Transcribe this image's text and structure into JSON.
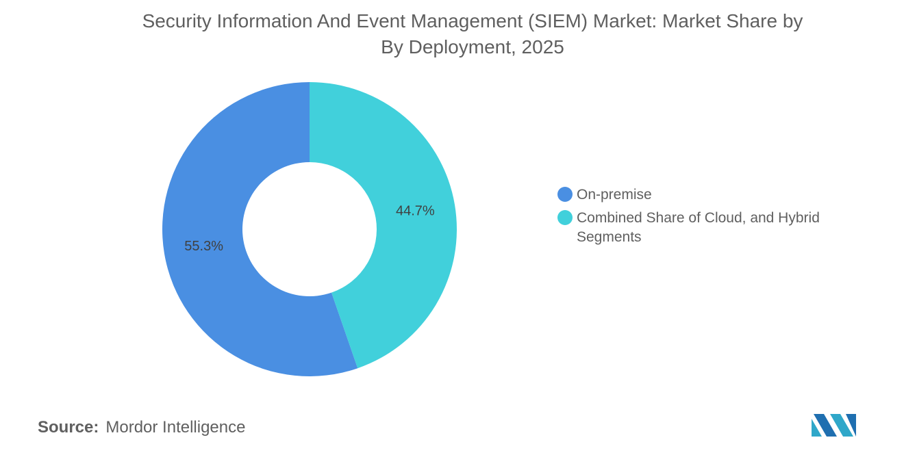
{
  "chart_data": {
    "type": "pie",
    "title": [
      "Security Information And Event Management (SIEM) Market: Market Share by",
      "By Deployment, 2025"
    ],
    "categories": [
      "On-premise",
      "Combined Share of Cloud, and Hybrid Segments"
    ],
    "values": [
      55.3,
      44.7
    ],
    "value_labels": [
      "55.3%",
      "44.7%"
    ],
    "colors": [
      "#4a8fe2",
      "#41d0db"
    ],
    "source_label": "Source:",
    "source": "Mordor Intelligence"
  }
}
